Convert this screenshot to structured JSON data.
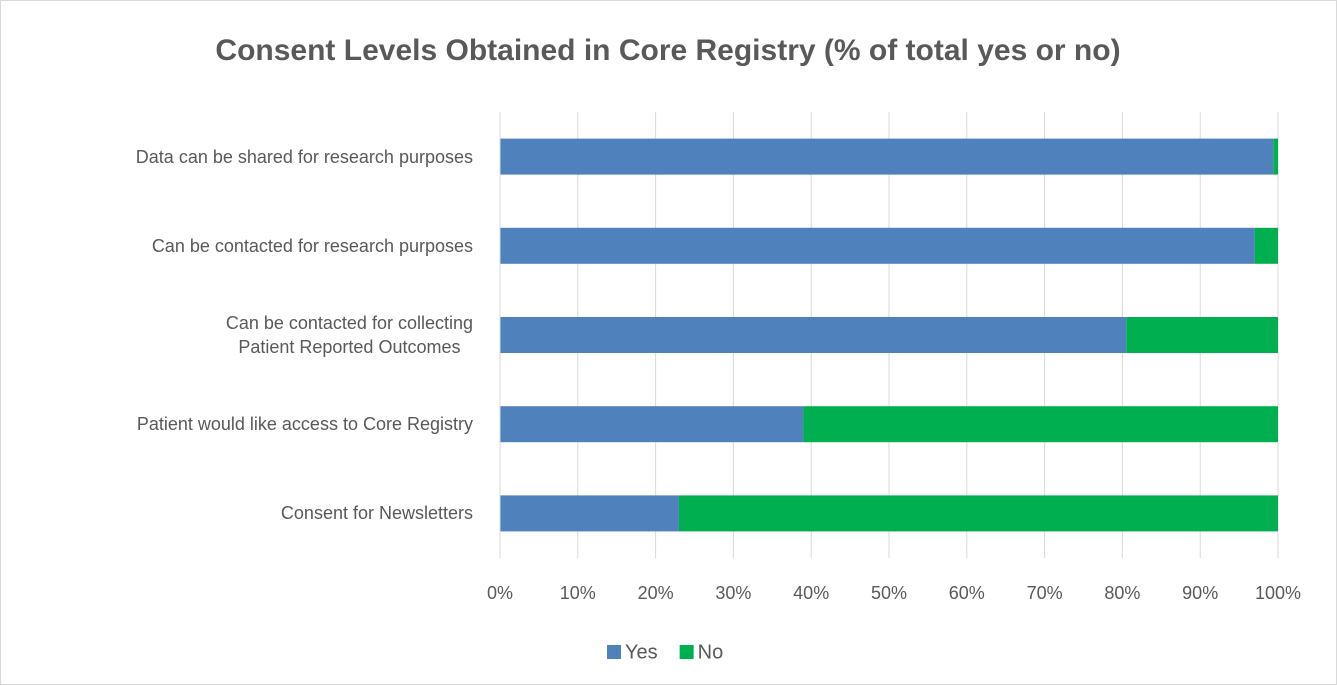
{
  "chart_data": {
    "type": "bar",
    "orientation": "horizontal",
    "stacked": true,
    "title": "Consent Levels Obtained in Core Registry (% of total yes or no)",
    "categories": [
      "Data can be shared for research purposes",
      "Can be contacted for research purposes",
      "Can be contacted for collecting\nPatient Reported Outcomes",
      "Patient would like access to Core Registry",
      "Consent for Newsletters"
    ],
    "series": [
      {
        "name": "Yes",
        "color": "#4f81bd",
        "values": [
          99.4,
          97,
          80.5,
          39,
          23
        ]
      },
      {
        "name": "No",
        "color": "#00b050",
        "values": [
          0.6,
          3,
          19.5,
          61,
          77
        ]
      }
    ],
    "xlim": [
      0,
      100
    ],
    "xticks": [
      {
        "value": 0,
        "label": "0%"
      },
      {
        "value": 10,
        "label": "10%"
      },
      {
        "value": 20,
        "label": "20%"
      },
      {
        "value": 30,
        "label": "30%"
      },
      {
        "value": 40,
        "label": "40%"
      },
      {
        "value": 50,
        "label": "50%"
      },
      {
        "value": 60,
        "label": "60%"
      },
      {
        "value": 70,
        "label": "70%"
      },
      {
        "value": 80,
        "label": "80%"
      },
      {
        "value": 90,
        "label": "90%"
      },
      {
        "value": 100,
        "label": "100%"
      }
    ],
    "grid": true,
    "legend": "bottom"
  }
}
